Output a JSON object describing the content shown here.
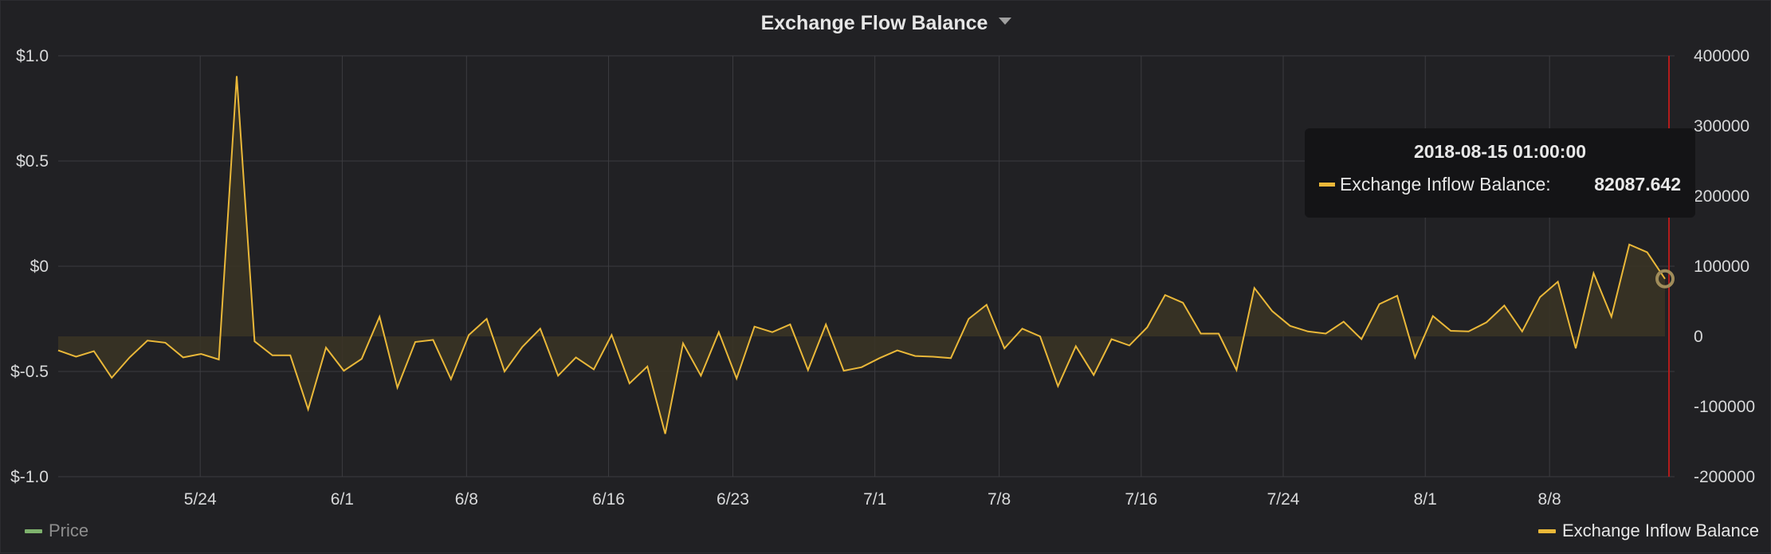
{
  "panel": {
    "title": "Exchange Flow Balance"
  },
  "colors": {
    "background": "#212124",
    "grid": "#3c3c40",
    "inflow_line": "#eab839",
    "inflow_fill": "#3a3425",
    "price_legend": "#7eb26d",
    "cursor_line": "#b31b1b"
  },
  "legend": {
    "left_label": "Price",
    "right_label": "Exchange Inflow Balance"
  },
  "tooltip": {
    "time": "2018-08-15 01:00:00",
    "series_label": "Exchange Inflow Balance:",
    "value": "82087.642"
  },
  "chart_data": {
    "type": "area",
    "x_start": "2018-05-16",
    "x_end": "2018-08-15",
    "x_tick_labels": [
      "5/24",
      "6/1",
      "6/8",
      "6/16",
      "6/23",
      "7/1",
      "7/8",
      "7/16",
      "7/24",
      "8/1",
      "8/8"
    ],
    "y_left_tick_labels": [
      "$1.0",
      "$0.5",
      "$0",
      "$-0.5",
      "$-1.0"
    ],
    "y_left_range": [
      -1.0,
      1.0
    ],
    "y_right_tick_labels": [
      "400000",
      "300000",
      "200000",
      "100000",
      "0",
      "-100000",
      "-200000"
    ],
    "y_right_range": [
      -200000,
      400000
    ],
    "grid": true,
    "series": [
      {
        "name": "Exchange Inflow Balance",
        "axis": "right",
        "values": [
          -20000,
          -29000,
          -21000,
          -59000,
          -30000,
          -6000,
          -9000,
          -30000,
          -25000,
          -33000,
          371000,
          -7000,
          -27000,
          -27000,
          -104000,
          -16000,
          -49000,
          -32000,
          28000,
          -73000,
          -8000,
          -5000,
          -61000,
          2000,
          25000,
          -50000,
          -15000,
          11000,
          -56000,
          -30000,
          -47000,
          2000,
          -67000,
          -43000,
          -139000,
          -10000,
          -56000,
          6000,
          -60000,
          14000,
          6000,
          17000,
          -48000,
          17000,
          -49000,
          -44000,
          -31000,
          -20000,
          -28000,
          -29000,
          -31000,
          25000,
          45000,
          -17000,
          11000,
          0,
          -71000,
          -14000,
          -55000,
          -4000,
          -13000,
          13000,
          59000,
          48000,
          4000,
          4000,
          -48000,
          69000,
          36000,
          15000,
          7000,
          4000,
          21000,
          -4000,
          46000,
          58000,
          -30000,
          29000,
          8000,
          7000,
          20000,
          44000,
          7000,
          56000,
          78000,
          -17000,
          90000,
          28000,
          131000,
          120000,
          82088
        ]
      },
      {
        "name": "Price",
        "axis": "left",
        "values": []
      }
    ]
  }
}
